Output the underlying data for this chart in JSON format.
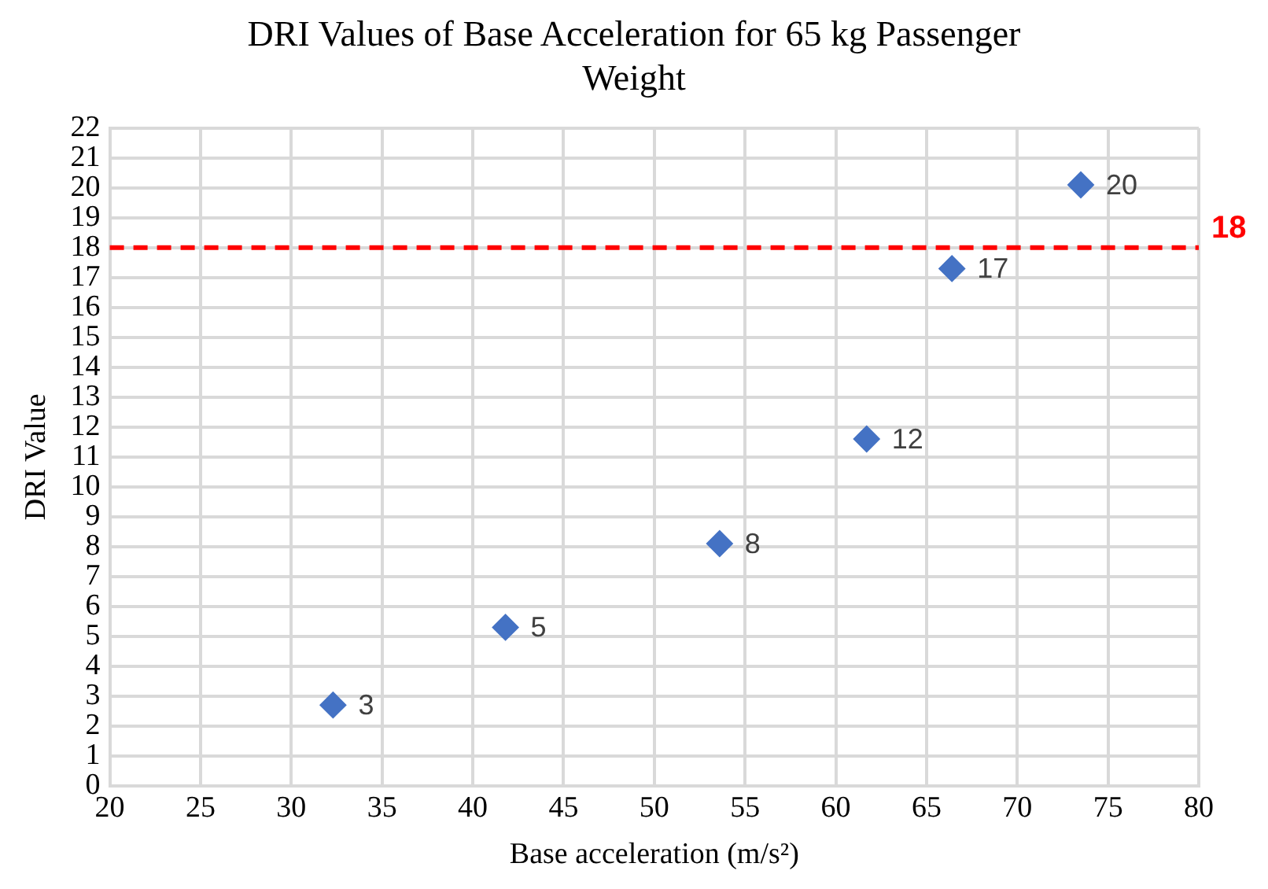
{
  "chart_data": {
    "type": "scatter",
    "title": "DRI Values of Base Acceleration for 65 kg Passenger Weight",
    "xlabel": "Base acceleration (m/s²)",
    "ylabel": "DRI Value",
    "x": [
      32.3,
      41.8,
      53.6,
      61.7,
      66.4,
      73.5
    ],
    "series": [
      {
        "color": "#4472c4",
        "values": [
          2.7,
          5.3,
          8.1,
          11.6,
          17.3,
          20.1
        ],
        "value_labels": [
          "3",
          "5",
          "8",
          "12",
          "17",
          "20"
        ]
      }
    ],
    "xlim": [
      20,
      80
    ],
    "xticks": [
      20,
      25,
      30,
      35,
      40,
      45,
      50,
      55,
      60,
      65,
      70,
      75,
      80
    ],
    "ylim": [
      0,
      22
    ],
    "yticks": [
      0,
      1,
      2,
      3,
      4,
      5,
      6,
      7,
      8,
      9,
      10,
      11,
      12,
      13,
      14,
      15,
      16,
      17,
      18,
      19,
      20,
      21,
      22
    ],
    "ref_lines": [
      {
        "axis": "y",
        "value": 18,
        "label": "18",
        "color": "#ff0000",
        "line_style": "dashed"
      }
    ],
    "grid": true,
    "legend": false,
    "marker": "diamond"
  }
}
